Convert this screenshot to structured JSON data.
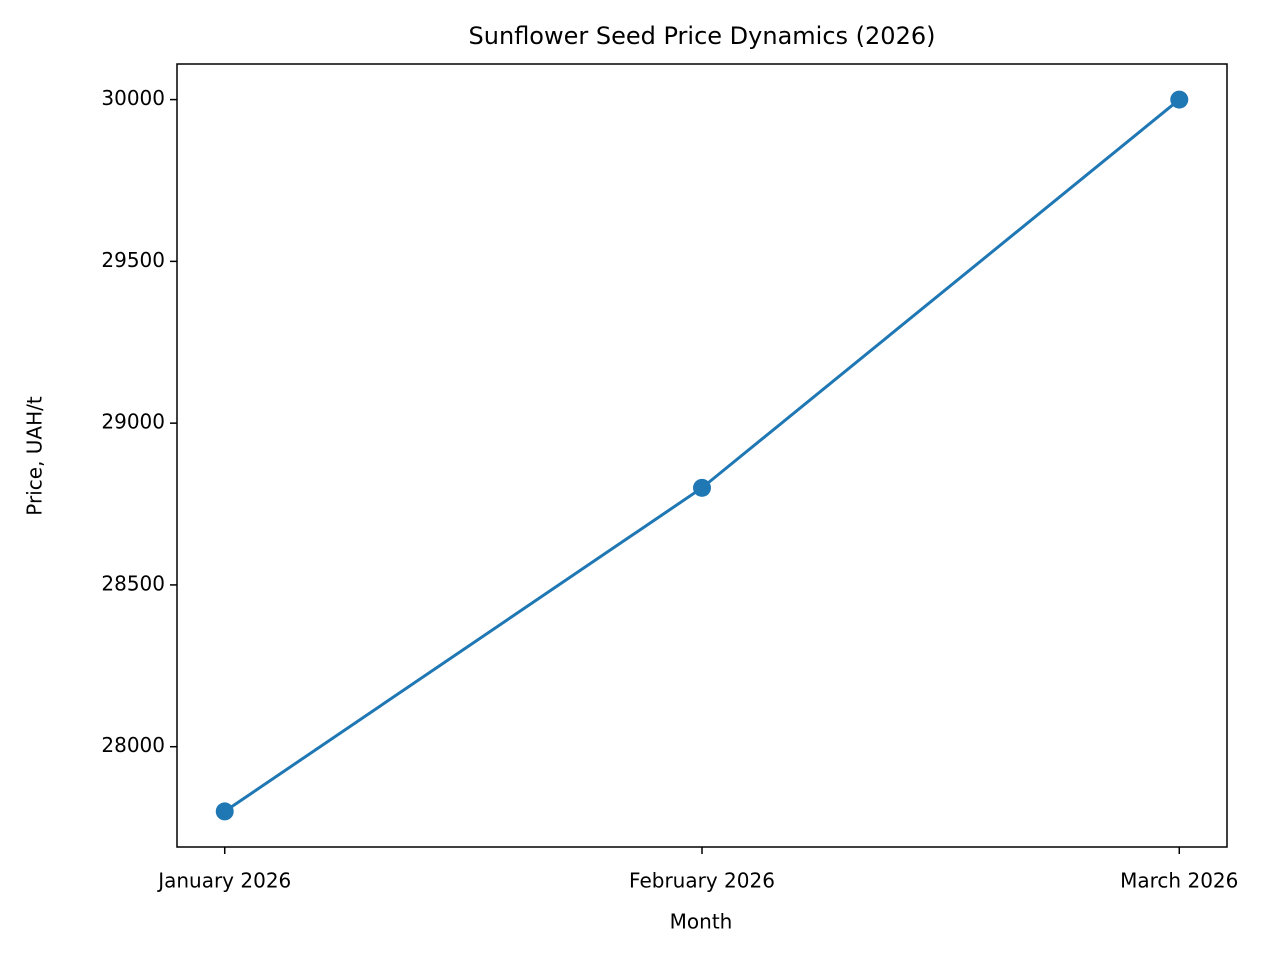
{
  "chart_data": {
    "type": "line",
    "title": "Sunflower Seed Price Dynamics (2026)",
    "x_label": "Month",
    "y_label": "Price, UAH/t",
    "categories": [
      "January 2026",
      "February 2026",
      "March 2026"
    ],
    "series": [
      {
        "name": "Price",
        "color": "#1f77b4",
        "values": [
          27800,
          28800,
          30000
        ]
      }
    ],
    "ylim": [
      27690,
      30110
    ],
    "yticks": [
      28000,
      28500,
      29000,
      29500,
      30000
    ],
    "grid": false
  }
}
